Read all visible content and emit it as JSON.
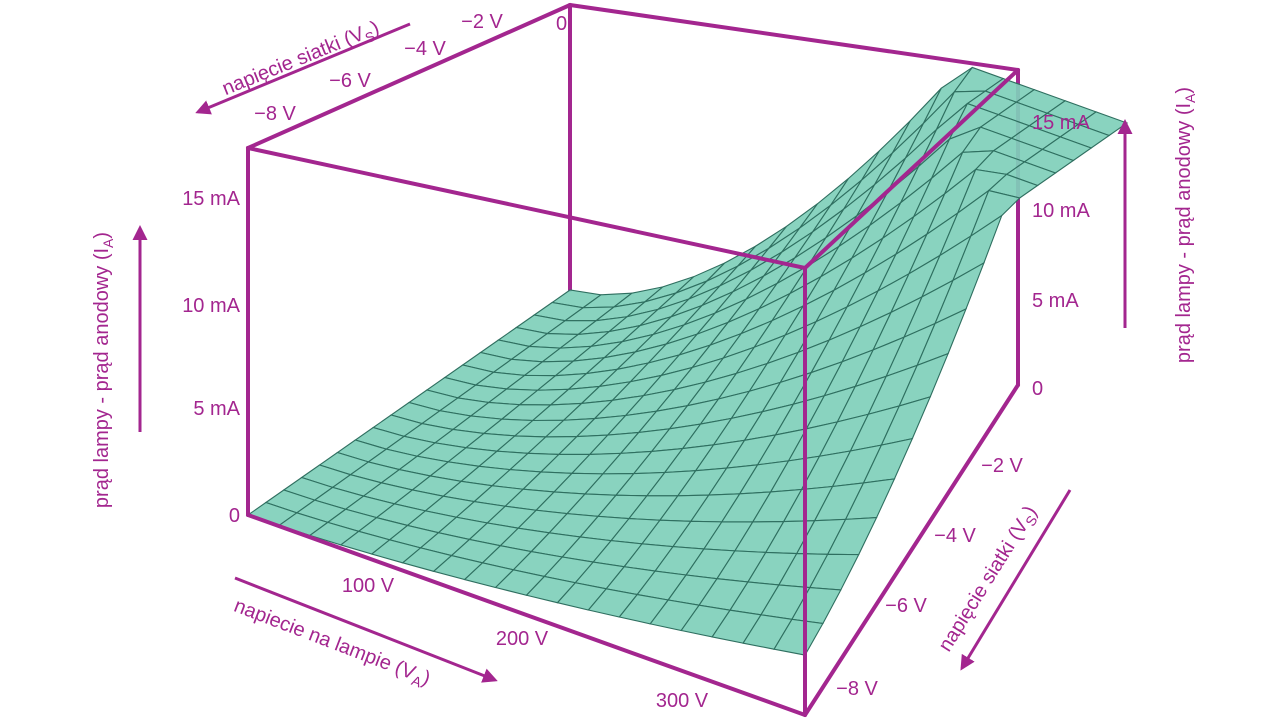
{
  "axes": {
    "current_left": {
      "label": [
        "prąd lampy - prąd anodowy (I",
        "A",
        ")"
      ],
      "ticks": [
        "0",
        "5 mA",
        "10 mA",
        "15 mA"
      ]
    },
    "current_right": {
      "label": [
        "prąd lampy - prąd anodowy (I",
        "A",
        ")"
      ],
      "ticks": [
        "0",
        "5 mA",
        "10 mA",
        "15 mA"
      ]
    },
    "grid_top": {
      "label": [
        "napięcie siatki (V",
        "S",
        ")"
      ],
      "ticks": [
        "−2 V",
        "−4 V",
        "−6 V",
        "−8 V"
      ],
      "origin": "0"
    },
    "grid_right": {
      "label": [
        "napięcie siatki (V",
        "S",
        ")"
      ],
      "ticks": [
        "−2 V",
        "−4 V",
        "−6 V",
        "−8 V"
      ]
    },
    "anode": {
      "label": [
        "napiecie na lampie (V",
        "A",
        ")"
      ],
      "ticks": [
        "100 V",
        "200 V",
        "300 V"
      ]
    }
  }
}
